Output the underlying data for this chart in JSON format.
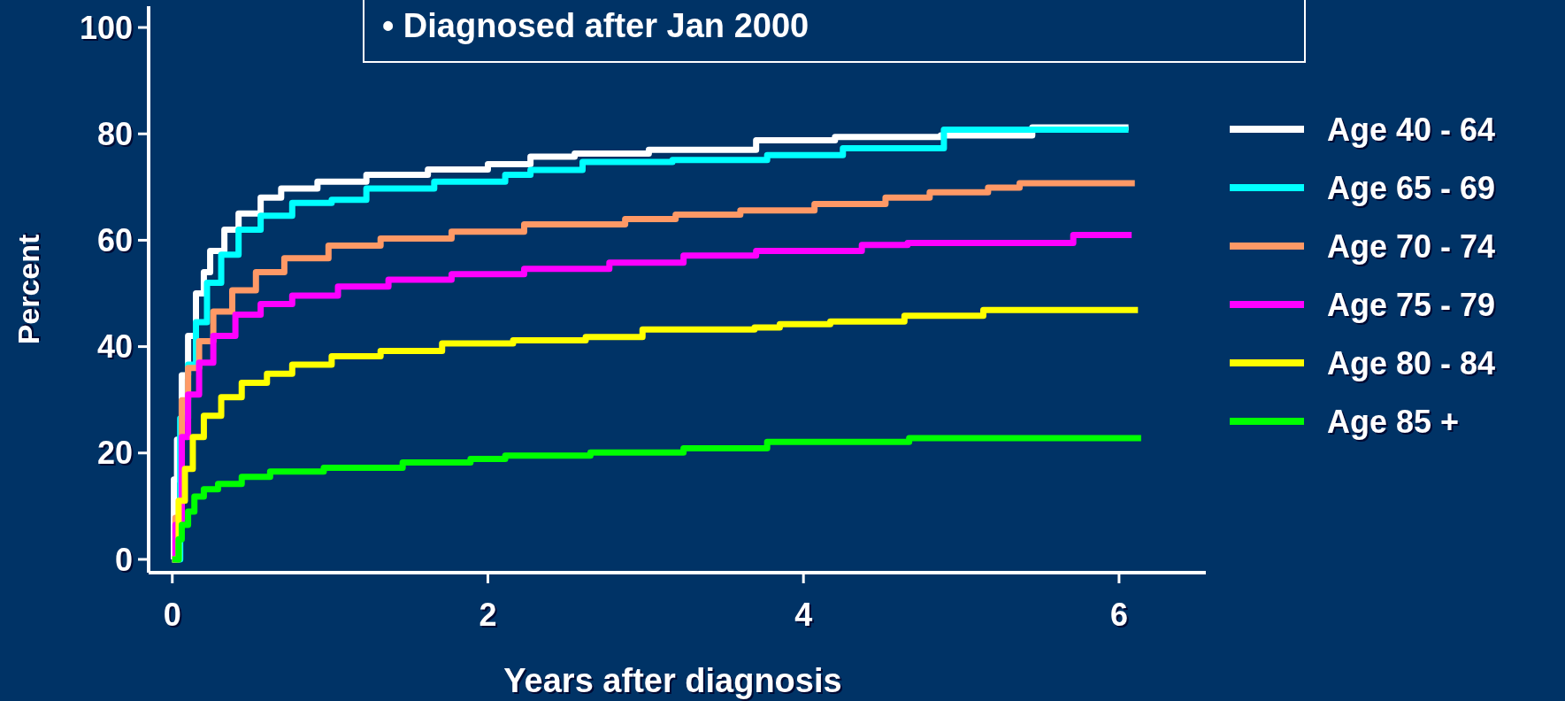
{
  "chart_data": {
    "type": "step",
    "xlabel": "Years after diagnosis",
    "ylabel": "Percent",
    "annotations": [
      "• Diagnosed after Jan 2000"
    ],
    "xlim": [
      -0.15,
      6.55
    ],
    "ylim": [
      -2.5,
      104
    ],
    "xticks": [
      0,
      2,
      4,
      6
    ],
    "yticks": [
      0,
      20,
      40,
      60,
      80,
      100
    ],
    "grid": false,
    "legend": "right",
    "line_style": "solid",
    "marker": "none",
    "series": [
      {
        "name": "Age 40 - 64",
        "color": "#ffffff",
        "x": [
          0,
          0.01,
          0.03,
          0.06,
          0.1,
          0.15,
          0.2,
          0.24,
          0.33,
          0.42,
          0.56,
          0.69,
          0.92,
          1.23,
          1.62,
          2.0,
          2.27,
          2.55,
          3.02,
          3.7,
          4.2,
          4.87,
          5.45,
          6.06
        ],
        "values": [
          0,
          15,
          22.5,
          34.6,
          42,
          50,
          54,
          58,
          62,
          65,
          68,
          69.7,
          71,
          72.3,
          73.3,
          74.3,
          75.7,
          76.3,
          77,
          78.8,
          79.4,
          79.7,
          81.2,
          81.2
        ]
      },
      {
        "name": "Age 65 - 69",
        "color": "#00ffff",
        "x": [
          0,
          0.05,
          0.1,
          0.15,
          0.22,
          0.31,
          0.42,
          0.56,
          0.76,
          1.01,
          1.23,
          1.66,
          2.11,
          2.27,
          2.6,
          3.17,
          3.77,
          4.25,
          4.89,
          6.06
        ],
        "values": [
          0,
          26.5,
          36.6,
          44.6,
          52,
          57.3,
          62,
          64.6,
          67,
          67.6,
          69.7,
          71,
          72.3,
          73.2,
          74.7,
          75.1,
          76,
          77.3,
          80.8,
          80.8
        ]
      },
      {
        "name": "Age 70 - 74",
        "color": "#ff9966",
        "x": [
          0,
          0.02,
          0.06,
          0.1,
          0.17,
          0.26,
          0.38,
          0.53,
          0.71,
          0.99,
          1.32,
          1.77,
          2.23,
          2.87,
          3.19,
          3.6,
          4.07,
          4.52,
          4.8,
          5.17,
          5.37,
          6.1
        ],
        "values": [
          0,
          7.8,
          29.9,
          36,
          41,
          46.6,
          50.6,
          54,
          56.6,
          59,
          60.3,
          61.6,
          63,
          64,
          64.8,
          65.6,
          66.8,
          68,
          69,
          69.9,
          70.7,
          70.7
        ]
      },
      {
        "name": "Age 75 - 79",
        "color": "#ff00ff",
        "x": [
          0,
          0.02,
          0.06,
          0.1,
          0.17,
          0.26,
          0.4,
          0.56,
          0.76,
          1.05,
          1.37,
          1.77,
          2.23,
          2.77,
          3.24,
          3.7,
          4.37,
          4.66,
          5.71,
          6.08
        ],
        "values": [
          0,
          6.5,
          23,
          31,
          37,
          42,
          46,
          48,
          49.6,
          51.3,
          52.6,
          53.6,
          54.6,
          55.8,
          57.1,
          58,
          59.1,
          59.5,
          61,
          61
        ]
      },
      {
        "name": "Age 80 - 84",
        "color": "#ffff00",
        "x": [
          0,
          0.04,
          0.08,
          0.13,
          0.2,
          0.31,
          0.44,
          0.6,
          0.76,
          1.01,
          1.32,
          1.71,
          2.16,
          2.62,
          2.98,
          3.69,
          3.85,
          4.17,
          4.64,
          5.14,
          6.12
        ],
        "values": [
          0,
          11,
          17,
          23,
          27,
          30.5,
          33.2,
          34.9,
          36.6,
          38.2,
          39.2,
          40.6,
          41.2,
          41.8,
          43.2,
          43.6,
          44.2,
          44.7,
          45.8,
          46.9,
          46.9
        ]
      },
      {
        "name": "Age 85 +",
        "color": "#00ff00",
        "x": [
          0,
          0.04,
          0.06,
          0.1,
          0.14,
          0.2,
          0.29,
          0.44,
          0.62,
          0.96,
          1.46,
          1.89,
          2.11,
          2.65,
          3.24,
          3.77,
          4.67,
          6.14
        ],
        "values": [
          0,
          3.8,
          6.5,
          9,
          11.8,
          13.2,
          14.2,
          15.5,
          16.5,
          17.2,
          18.2,
          18.9,
          19.5,
          20.1,
          20.9,
          22.1,
          22.8,
          22.8
        ]
      }
    ]
  }
}
